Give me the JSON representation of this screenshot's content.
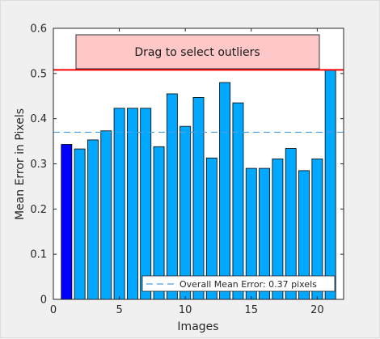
{
  "chart_data": {
    "type": "bar",
    "x": [
      1,
      2,
      3,
      4,
      5,
      6,
      7,
      8,
      9,
      10,
      11,
      12,
      13,
      14,
      15,
      16,
      17,
      18,
      19,
      20,
      21
    ],
    "values": [
      0.343,
      0.333,
      0.353,
      0.373,
      0.423,
      0.423,
      0.423,
      0.338,
      0.455,
      0.383,
      0.447,
      0.313,
      0.48,
      0.435,
      0.29,
      0.29,
      0.311,
      0.334,
      0.285,
      0.311,
      0.508
    ],
    "highlighted_index": 1,
    "mean_error": 0.37,
    "threshold": 0.508,
    "xlabel": "Images",
    "ylabel": "Mean Error in Pixels",
    "xlim": [
      0,
      22
    ],
    "ylim": [
      0,
      0.6
    ],
    "xticks": [
      0,
      5,
      10,
      15,
      20
    ],
    "yticks": [
      0,
      0.1,
      0.2,
      0.3,
      0.4,
      0.5,
      0.6
    ],
    "legend": "Overall Mean Error: 0.37 pixels",
    "legend_position": "bottom-right",
    "grid": false,
    "colors": {
      "bar": "#00a8ff",
      "bar_selected": "#0000ff",
      "mean_line": "#4d9ee0",
      "threshold": "#ff0000",
      "button_bg": "#ffc8c8"
    }
  },
  "controls": {
    "drag_label": "Drag to select outliers"
  }
}
